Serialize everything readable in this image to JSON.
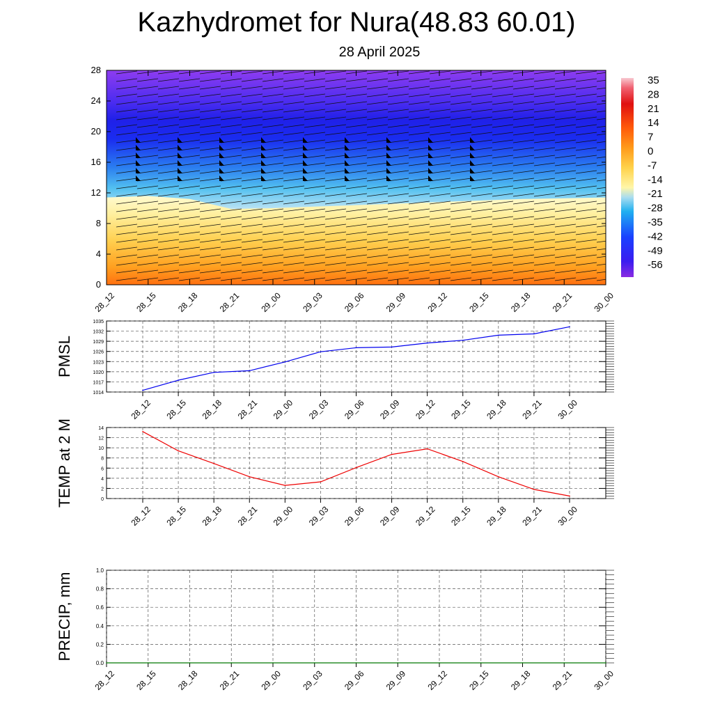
{
  "title": "Kazhydromet for Nura(48.83 60.01)",
  "subtitle": "28 April 2025",
  "chart_data": [
    {
      "type": "heatmap",
      "title": "",
      "xlabel": "",
      "ylabel": "",
      "x_ticks": [
        "28_12",
        "28_15",
        "28_18",
        "28_21",
        "29_00",
        "29_03",
        "29_06",
        "29_09",
        "29_12",
        "29_15",
        "29_18",
        "29_21",
        "30_00"
      ],
      "y_ticks": [
        0,
        4,
        8,
        12,
        16,
        20,
        24,
        28
      ],
      "ylim": [
        0,
        28
      ],
      "colorbar_labels": [
        "35",
        "28",
        "21",
        "14",
        "7",
        "0",
        "-7",
        "-14",
        "-21",
        "-28",
        "-35",
        "-42",
        "-49",
        "-56"
      ],
      "colorbar_range": [
        -63,
        42
      ],
      "freezing_level": [
        {
          "x": "28_12",
          "level": 11.4
        },
        {
          "x": "28_15",
          "level": 11.6
        },
        {
          "x": "28_18",
          "level": 11.2
        },
        {
          "x": "28_21",
          "level": 9.9
        },
        {
          "x": "29_00",
          "level": 10.0
        },
        {
          "x": "29_03",
          "level": 10.2
        },
        {
          "x": "29_06",
          "level": 10.4
        },
        {
          "x": "29_09",
          "level": 10.6
        },
        {
          "x": "29_12",
          "level": 10.8
        },
        {
          "x": "29_15",
          "level": 11.0
        },
        {
          "x": "29_18",
          "level": 11.2
        },
        {
          "x": "29_21",
          "level": 11.3
        },
        {
          "x": "30_00",
          "level": 11.4
        }
      ],
      "coldest_level": 21,
      "colors": {
        "cold": "#2222ee",
        "top": "#9933ff",
        "warm": "#ff6600",
        "zero": "#fff8b0"
      }
    },
    {
      "type": "line",
      "ylabel": "PMSL",
      "categories": [
        "28_12",
        "28_15",
        "28_18",
        "28_21",
        "29_00",
        "29_03",
        "29_06",
        "29_09",
        "29_12",
        "29_15",
        "29_18",
        "29_21",
        "30_00"
      ],
      "values": [
        1014.5,
        1017.5,
        1019.8,
        1020.3,
        1022.9,
        1025.9,
        1027.1,
        1027.3,
        1028.5,
        1029.3,
        1030.8,
        1031.2,
        1033.3
      ],
      "ylim": [
        1014,
        1035
      ],
      "y_ticks": [
        1014,
        1017,
        1020,
        1023,
        1026,
        1029,
        1032,
        1035
      ],
      "color": "#0000ee",
      "grid": true
    },
    {
      "type": "line",
      "ylabel": "TEMP at 2 M",
      "categories": [
        "28_12",
        "28_15",
        "28_18",
        "28_21",
        "29_00",
        "29_03",
        "29_06",
        "29_09",
        "29_12",
        "29_15",
        "29_18",
        "29_21",
        "30_00"
      ],
      "values": [
        13.2,
        9.4,
        6.9,
        4.3,
        2.6,
        3.3,
        6.1,
        8.7,
        9.8,
        7.3,
        4.3,
        1.8,
        0.5
      ],
      "ylim": [
        0,
        14
      ],
      "y_ticks": [
        0,
        2,
        4,
        6,
        8,
        10,
        12,
        14
      ],
      "color": "#ee0000",
      "grid": true
    },
    {
      "type": "line",
      "ylabel": "PRECIP, mm",
      "categories": [
        "28_12",
        "28_15",
        "28_18",
        "28_21",
        "29_00",
        "29_03",
        "29_06",
        "29_09",
        "29_12",
        "29_15",
        "29_18",
        "29_21",
        "30_00"
      ],
      "values": [
        0,
        0,
        0,
        0,
        0,
        0,
        0,
        0,
        0,
        0,
        0,
        0,
        0
      ],
      "ylim": [
        0,
        1
      ],
      "y_ticks": [
        "0.0",
        "0.2",
        "0.4",
        "0.6",
        "0.8",
        "1.0"
      ],
      "color": "#007700",
      "grid": true
    }
  ]
}
